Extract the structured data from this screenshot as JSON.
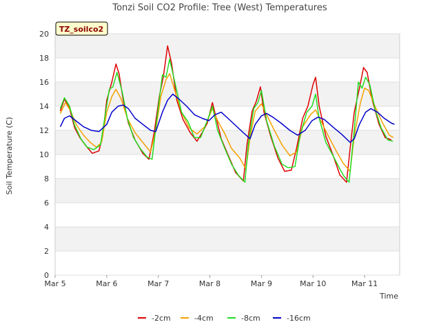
{
  "chart_data": {
    "type": "line",
    "title": "Tonzi Soil CO2 Profile: Tree (West) Temperatures",
    "xlabel": "Time",
    "ylabel": "Soil Temperature (C)",
    "badge": "TZ_soilco2",
    "xlim": [
      5.0,
      11.68
    ],
    "ylim": [
      0,
      20
    ],
    "x_ticks": [
      {
        "value": 5,
        "label": "Mar 5"
      },
      {
        "value": 6,
        "label": "Mar 6"
      },
      {
        "value": 7,
        "label": "Mar 7"
      },
      {
        "value": 8,
        "label": "Mar 8"
      },
      {
        "value": 9,
        "label": "Mar 9"
      },
      {
        "value": 10,
        "label": "Mar 10"
      },
      {
        "value": 11,
        "label": "Mar 11"
      }
    ],
    "y_ticks": [
      0,
      2,
      4,
      6,
      8,
      10,
      12,
      14,
      16,
      18,
      20
    ],
    "grid": true,
    "legend_position": "bottom",
    "series": [
      {
        "name": "-2cm",
        "color": "#dd0000",
        "points": [
          [
            5.1,
            13.6
          ],
          [
            5.18,
            14.6
          ],
          [
            5.28,
            13.8
          ],
          [
            5.38,
            12.2
          ],
          [
            5.48,
            11.4
          ],
          [
            5.6,
            10.7
          ],
          [
            5.72,
            10.1
          ],
          [
            5.85,
            10.3
          ],
          [
            5.92,
            11.5
          ],
          [
            6.0,
            14.5
          ],
          [
            6.1,
            16.0
          ],
          [
            6.18,
            17.5
          ],
          [
            6.24,
            16.7
          ],
          [
            6.32,
            14.5
          ],
          [
            6.42,
            12.6
          ],
          [
            6.55,
            11.2
          ],
          [
            6.7,
            10.1
          ],
          [
            6.82,
            9.6
          ],
          [
            6.92,
            11.8
          ],
          [
            7.02,
            14.8
          ],
          [
            7.1,
            16.5
          ],
          [
            7.18,
            19.0
          ],
          [
            7.26,
            17.5
          ],
          [
            7.36,
            14.5
          ],
          [
            7.48,
            12.9
          ],
          [
            7.62,
            11.8
          ],
          [
            7.75,
            11.1
          ],
          [
            7.85,
            11.8
          ],
          [
            7.95,
            12.6
          ],
          [
            8.05,
            14.3
          ],
          [
            8.12,
            13.1
          ],
          [
            8.22,
            11.3
          ],
          [
            8.35,
            10.0
          ],
          [
            8.5,
            8.5
          ],
          [
            8.65,
            7.8
          ],
          [
            8.72,
            10.8
          ],
          [
            8.82,
            13.6
          ],
          [
            8.9,
            14.4
          ],
          [
            8.98,
            15.6
          ],
          [
            9.05,
            13.5
          ],
          [
            9.18,
            11.5
          ],
          [
            9.32,
            9.7
          ],
          [
            9.45,
            8.6
          ],
          [
            9.58,
            8.7
          ],
          [
            9.68,
            10.5
          ],
          [
            9.8,
            13.0
          ],
          [
            9.9,
            14.0
          ],
          [
            10.0,
            15.8
          ],
          [
            10.05,
            16.4
          ],
          [
            10.12,
            14.0
          ],
          [
            10.25,
            11.5
          ],
          [
            10.4,
            9.8
          ],
          [
            10.52,
            8.3
          ],
          [
            10.65,
            7.7
          ],
          [
            10.72,
            10.5
          ],
          [
            10.8,
            13.5
          ],
          [
            10.9,
            15.5
          ],
          [
            10.98,
            17.2
          ],
          [
            11.05,
            16.8
          ],
          [
            11.15,
            14.5
          ],
          [
            11.28,
            12.5
          ],
          [
            11.4,
            11.4
          ],
          [
            11.52,
            11.2
          ]
        ]
      },
      {
        "name": "-4cm",
        "color": "#f5a000",
        "points": [
          [
            5.1,
            13.4
          ],
          [
            5.2,
            14.3
          ],
          [
            5.3,
            13.6
          ],
          [
            5.42,
            12.4
          ],
          [
            5.55,
            11.6
          ],
          [
            5.68,
            11.0
          ],
          [
            5.8,
            10.6
          ],
          [
            5.9,
            11.0
          ],
          [
            6.0,
            13.5
          ],
          [
            6.1,
            14.8
          ],
          [
            6.18,
            15.4
          ],
          [
            6.28,
            14.6
          ],
          [
            6.4,
            13.0
          ],
          [
            6.55,
            11.8
          ],
          [
            6.7,
            11.0
          ],
          [
            6.85,
            10.2
          ],
          [
            6.95,
            12.0
          ],
          [
            7.05,
            14.8
          ],
          [
            7.15,
            16.2
          ],
          [
            7.22,
            16.7
          ],
          [
            7.32,
            15.3
          ],
          [
            7.45,
            13.5
          ],
          [
            7.6,
            12.2
          ],
          [
            7.75,
            11.7
          ],
          [
            7.9,
            12.3
          ],
          [
            8.05,
            13.8
          ],
          [
            8.15,
            12.8
          ],
          [
            8.28,
            11.8
          ],
          [
            8.42,
            10.5
          ],
          [
            8.58,
            9.7
          ],
          [
            8.7,
            8.8
          ],
          [
            8.78,
            11.4
          ],
          [
            8.88,
            13.6
          ],
          [
            9.0,
            14.2
          ],
          [
            9.1,
            13.3
          ],
          [
            9.25,
            12.0
          ],
          [
            9.4,
            10.8
          ],
          [
            9.55,
            9.9
          ],
          [
            9.68,
            10.2
          ],
          [
            9.8,
            12.3
          ],
          [
            9.95,
            13.3
          ],
          [
            10.05,
            13.7
          ],
          [
            10.15,
            12.8
          ],
          [
            10.3,
            11.5
          ],
          [
            10.45,
            10.3
          ],
          [
            10.58,
            9.3
          ],
          [
            10.72,
            8.6
          ],
          [
            10.8,
            11.5
          ],
          [
            10.92,
            14.3
          ],
          [
            11.0,
            15.5
          ],
          [
            11.08,
            15.3
          ],
          [
            11.2,
            14.0
          ],
          [
            11.35,
            12.6
          ],
          [
            11.48,
            11.6
          ],
          [
            11.56,
            11.4
          ]
        ]
      },
      {
        "name": "-8cm",
        "color": "#22dd22",
        "points": [
          [
            5.1,
            13.8
          ],
          [
            5.18,
            14.7
          ],
          [
            5.28,
            14.0
          ],
          [
            5.38,
            12.4
          ],
          [
            5.5,
            11.3
          ],
          [
            5.62,
            10.6
          ],
          [
            5.75,
            10.4
          ],
          [
            5.88,
            10.8
          ],
          [
            5.96,
            13.0
          ],
          [
            6.05,
            15.4
          ],
          [
            6.12,
            15.6
          ],
          [
            6.2,
            16.8
          ],
          [
            6.3,
            15.2
          ],
          [
            6.4,
            13.0
          ],
          [
            6.52,
            11.4
          ],
          [
            6.65,
            10.5
          ],
          [
            6.78,
            9.8
          ],
          [
            6.88,
            9.6
          ],
          [
            6.98,
            13.2
          ],
          [
            7.08,
            16.6
          ],
          [
            7.15,
            16.4
          ],
          [
            7.22,
            17.9
          ],
          [
            7.32,
            16.0
          ],
          [
            7.45,
            13.5
          ],
          [
            7.58,
            12.7
          ],
          [
            7.7,
            11.4
          ],
          [
            7.82,
            11.4
          ],
          [
            7.95,
            12.8
          ],
          [
            8.05,
            14.0
          ],
          [
            8.15,
            12.0
          ],
          [
            8.28,
            10.6
          ],
          [
            8.42,
            9.2
          ],
          [
            8.55,
            8.3
          ],
          [
            8.68,
            7.7
          ],
          [
            8.75,
            11.0
          ],
          [
            8.85,
            13.8
          ],
          [
            8.93,
            14.3
          ],
          [
            9.0,
            15.3
          ],
          [
            9.1,
            12.8
          ],
          [
            9.25,
            10.7
          ],
          [
            9.4,
            9.2
          ],
          [
            9.52,
            8.9
          ],
          [
            9.65,
            9.0
          ],
          [
            9.75,
            11.6
          ],
          [
            9.88,
            13.5
          ],
          [
            9.98,
            14.0
          ],
          [
            10.05,
            15.0
          ],
          [
            10.12,
            13.0
          ],
          [
            10.25,
            11.0
          ],
          [
            10.4,
            9.8
          ],
          [
            10.52,
            8.8
          ],
          [
            10.6,
            8.2
          ],
          [
            10.7,
            7.7
          ],
          [
            10.8,
            12.0
          ],
          [
            10.88,
            16.0
          ],
          [
            10.95,
            15.5
          ],
          [
            11.02,
            16.4
          ],
          [
            11.1,
            15.8
          ],
          [
            11.2,
            13.8
          ],
          [
            11.32,
            12.2
          ],
          [
            11.45,
            11.2
          ],
          [
            11.55,
            11.1
          ]
        ]
      },
      {
        "name": "-16cm",
        "color": "#0000cc",
        "points": [
          [
            5.1,
            12.3
          ],
          [
            5.18,
            13.0
          ],
          [
            5.28,
            13.2
          ],
          [
            5.4,
            12.8
          ],
          [
            5.55,
            12.3
          ],
          [
            5.7,
            12.0
          ],
          [
            5.85,
            11.9
          ],
          [
            6.0,
            12.5
          ],
          [
            6.1,
            13.5
          ],
          [
            6.22,
            14.0
          ],
          [
            6.32,
            14.1
          ],
          [
            6.42,
            13.8
          ],
          [
            6.55,
            13.0
          ],
          [
            6.7,
            12.5
          ],
          [
            6.85,
            12.0
          ],
          [
            6.95,
            11.9
          ],
          [
            7.08,
            13.5
          ],
          [
            7.18,
            14.5
          ],
          [
            7.28,
            15.0
          ],
          [
            7.4,
            14.6
          ],
          [
            7.55,
            14.0
          ],
          [
            7.7,
            13.3
          ],
          [
            7.85,
            13.0
          ],
          [
            7.98,
            12.8
          ],
          [
            8.1,
            13.3
          ],
          [
            8.22,
            13.5
          ],
          [
            8.35,
            13.0
          ],
          [
            8.5,
            12.4
          ],
          [
            8.65,
            11.8
          ],
          [
            8.78,
            11.3
          ],
          [
            8.88,
            12.5
          ],
          [
            9.0,
            13.2
          ],
          [
            9.1,
            13.4
          ],
          [
            9.22,
            13.1
          ],
          [
            9.38,
            12.6
          ],
          [
            9.55,
            12.0
          ],
          [
            9.7,
            11.6
          ],
          [
            9.85,
            12.0
          ],
          [
            9.98,
            12.8
          ],
          [
            10.1,
            13.1
          ],
          [
            10.22,
            12.9
          ],
          [
            10.38,
            12.3
          ],
          [
            10.55,
            11.7
          ],
          [
            10.72,
            11.0
          ],
          [
            10.8,
            11.3
          ],
          [
            10.9,
            12.5
          ],
          [
            11.02,
            13.5
          ],
          [
            11.12,
            13.8
          ],
          [
            11.25,
            13.5
          ],
          [
            11.38,
            13.0
          ],
          [
            11.52,
            12.6
          ],
          [
            11.58,
            12.5
          ]
        ]
      }
    ]
  }
}
